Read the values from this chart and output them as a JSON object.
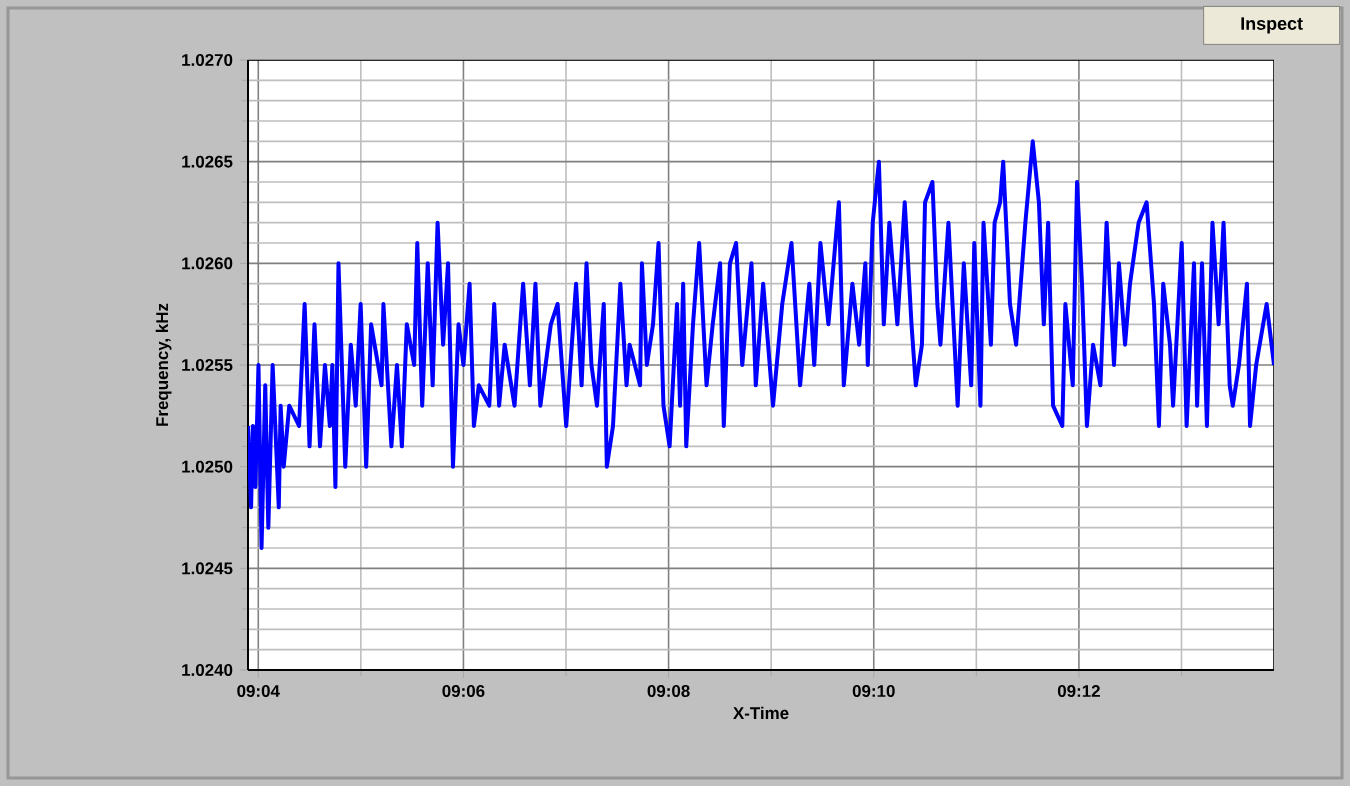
{
  "chart_data": {
    "type": "line",
    "xlabel": "X-Time",
    "ylabel": "Frequency, kHz",
    "annotations": [
      "Inspect"
    ],
    "xlim": [
      9.065,
      9.2317
    ],
    "xticks": [
      {
        "value": 9.066667,
        "label": "09:04"
      },
      {
        "value": 9.083333,
        "label": null
      },
      {
        "value": 9.1,
        "label": "09:06"
      },
      {
        "value": 9.116667,
        "label": null
      },
      {
        "value": 9.133333,
        "label": "09:08"
      },
      {
        "value": 9.15,
        "label": null
      },
      {
        "value": 9.166667,
        "label": "09:10"
      },
      {
        "value": 9.183333,
        "label": null
      },
      {
        "value": 9.2,
        "label": "09:12"
      },
      {
        "value": 9.216667,
        "label": null
      }
    ],
    "ylim": [
      1.024,
      1.027
    ],
    "yticks": [
      {
        "value": 1.024,
        "label": "1.0240"
      },
      {
        "value": 1.0241,
        "label": null
      },
      {
        "value": 1.0242,
        "label": null
      },
      {
        "value": 1.0243,
        "label": null
      },
      {
        "value": 1.0244,
        "label": null
      },
      {
        "value": 1.0245,
        "label": "1.0245"
      },
      {
        "value": 1.0246,
        "label": null
      },
      {
        "value": 1.0247,
        "label": null
      },
      {
        "value": 1.0248,
        "label": null
      },
      {
        "value": 1.0249,
        "label": null
      },
      {
        "value": 1.025,
        "label": "1.0250"
      },
      {
        "value": 1.0251,
        "label": null
      },
      {
        "value": 1.0252,
        "label": null
      },
      {
        "value": 1.0253,
        "label": null
      },
      {
        "value": 1.0254,
        "label": null
      },
      {
        "value": 1.0255,
        "label": "1.0255"
      },
      {
        "value": 1.0256,
        "label": null
      },
      {
        "value": 1.0257,
        "label": null
      },
      {
        "value": 1.0258,
        "label": null
      },
      {
        "value": 1.0259,
        "label": null
      },
      {
        "value": 1.026,
        "label": "1.0260"
      },
      {
        "value": 1.0261,
        "label": null
      },
      {
        "value": 1.0262,
        "label": null
      },
      {
        "value": 1.0263,
        "label": null
      },
      {
        "value": 1.0264,
        "label": null
      },
      {
        "value": 1.0265,
        "label": "1.0265"
      },
      {
        "value": 1.0266,
        "label": null
      },
      {
        "value": 1.0267,
        "label": null
      },
      {
        "value": 1.0268,
        "label": null
      },
      {
        "value": 1.0269,
        "label": null
      },
      {
        "value": 1.027,
        "label": "1.0270"
      }
    ],
    "grid": true,
    "legend": false,
    "marker": "none",
    "line_style": "solid",
    "series": [
      {
        "color": "#0000ff",
        "x": [
          9.065,
          9.0655,
          9.0658,
          9.0662,
          9.0667,
          9.0672,
          9.0678,
          9.0683,
          9.069,
          9.07,
          9.0703,
          9.0708,
          9.0717,
          9.0733,
          9.0742,
          9.075,
          9.0758,
          9.0767,
          9.0775,
          9.0783,
          9.0787,
          9.0792,
          9.0797,
          9.0808,
          9.0817,
          9.0825,
          9.0833,
          9.0842,
          9.085,
          9.0867,
          9.087,
          9.0883,
          9.0892,
          9.09,
          9.0908,
          9.092,
          9.0925,
          9.0933,
          9.0942,
          9.095,
          9.0958,
          9.0967,
          9.0975,
          9.0983,
          9.0992,
          9.1,
          9.101,
          9.1017,
          9.1025,
          9.1042,
          9.105,
          9.1058,
          9.1067,
          9.1083,
          9.1097,
          9.1108,
          9.1117,
          9.1125,
          9.1142,
          9.1153,
          9.1167,
          9.1183,
          9.1192,
          9.12,
          9.1208,
          9.1217,
          9.1228,
          9.1233,
          9.1243,
          9.1255,
          9.1265,
          9.127,
          9.1287,
          9.129,
          9.1298,
          9.1308,
          9.1317,
          9.1325,
          9.1335,
          9.1347,
          9.1352,
          9.1357,
          9.1362,
          9.1373,
          9.1383,
          9.1395,
          9.1405,
          9.1417,
          9.1423,
          9.1433,
          9.1443,
          9.1453,
          9.1468,
          9.1475,
          9.1487,
          9.1503,
          9.1518,
          9.1533,
          9.1547,
          9.1562,
          9.157,
          9.158,
          9.1593,
          9.161,
          9.1618,
          9.1632,
          9.1643,
          9.1653,
          9.1657,
          9.1665,
          9.1675,
          9.1683,
          9.1692,
          9.1705,
          9.1717,
          9.1728,
          9.1735,
          9.1745,
          9.175,
          9.1762,
          9.177,
          9.1775,
          9.1788,
          9.1803,
          9.1813,
          9.1825,
          9.183,
          9.184,
          9.1845,
          9.1857,
          9.1863,
          9.1872,
          9.1877,
          9.1888,
          9.1898,
          9.1913,
          9.1925,
          9.1935,
          9.1943,
          9.195,
          9.1958,
          9.1973,
          9.1978,
          9.199,
          9.1997,
          9.2005,
          9.2013,
          9.2023,
          9.2035,
          9.2045,
          9.2057,
          9.2065,
          9.2075,
          9.2083,
          9.2097,
          9.211,
          9.2122,
          9.213,
          9.2137,
          9.2148,
          9.2153,
          9.2167,
          9.2175,
          9.2187,
          9.2192,
          9.22,
          9.2208,
          9.2217,
          9.2227,
          9.2235,
          9.2245,
          9.225,
          9.226,
          9.2273,
          9.2278,
          9.2288,
          9.2305,
          9.2317
        ],
        "values": [
          1.0252,
          1.0248,
          1.0252,
          1.0249,
          1.0255,
          1.0246,
          1.0254,
          1.0247,
          1.0255,
          1.0248,
          1.0253,
          1.025,
          1.0253,
          1.0252,
          1.0258,
          1.0251,
          1.0257,
          1.0251,
          1.0255,
          1.0252,
          1.0255,
          1.0249,
          1.026,
          1.025,
          1.0256,
          1.0253,
          1.0258,
          1.025,
          1.0257,
          1.0254,
          1.0258,
          1.0251,
          1.0255,
          1.0251,
          1.0257,
          1.0255,
          1.0261,
          1.0253,
          1.026,
          1.0254,
          1.0262,
          1.0256,
          1.026,
          1.025,
          1.0257,
          1.0255,
          1.0259,
          1.0252,
          1.0254,
          1.0253,
          1.0258,
          1.0253,
          1.0256,
          1.0253,
          1.0259,
          1.0254,
          1.0259,
          1.0253,
          1.0257,
          1.0258,
          1.0252,
          1.0259,
          1.0254,
          1.026,
          1.0255,
          1.0253,
          1.0258,
          1.025,
          1.0252,
          1.0259,
          1.0254,
          1.0256,
          1.0254,
          1.026,
          1.0255,
          1.0257,
          1.0261,
          1.0253,
          1.0251,
          1.0258,
          1.0253,
          1.0259,
          1.0251,
          1.0257,
          1.0261,
          1.0254,
          1.0257,
          1.026,
          1.0252,
          1.026,
          1.0261,
          1.0255,
          1.026,
          1.0254,
          1.0259,
          1.0253,
          1.0258,
          1.0261,
          1.0254,
          1.0259,
          1.0255,
          1.0261,
          1.0257,
          1.0263,
          1.0254,
          1.0259,
          1.0256,
          1.026,
          1.0255,
          1.0262,
          1.0265,
          1.0257,
          1.0262,
          1.0257,
          1.0263,
          1.0257,
          1.0254,
          1.0256,
          1.0263,
          1.0264,
          1.0258,
          1.0256,
          1.0262,
          1.0253,
          1.026,
          1.0254,
          1.0261,
          1.0253,
          1.0262,
          1.0256,
          1.0262,
          1.0263,
          1.0265,
          1.0258,
          1.0256,
          1.0262,
          1.0266,
          1.0263,
          1.0257,
          1.0262,
          1.0253,
          1.0252,
          1.0258,
          1.0254,
          1.0264,
          1.0259,
          1.0252,
          1.0256,
          1.0254,
          1.0262,
          1.0255,
          1.026,
          1.0256,
          1.0259,
          1.0262,
          1.0263,
          1.0258,
          1.0252,
          1.0259,
          1.0256,
          1.0253,
          1.0261,
          1.0252,
          1.026,
          1.0253,
          1.026,
          1.0252,
          1.0262,
          1.0257,
          1.0262,
          1.0254,
          1.0253,
          1.0255,
          1.0259,
          1.0252,
          1.0255,
          1.0258,
          1.0255
        ]
      }
    ]
  }
}
